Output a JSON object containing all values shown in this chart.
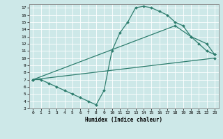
{
  "xlabel": "Humidex (Indice chaleur)",
  "bg_color": "#cde8e8",
  "line_color": "#2e7d6e",
  "xlim": [
    -0.5,
    23.5
  ],
  "ylim": [
    3,
    17.5
  ],
  "xticks": [
    0,
    1,
    2,
    3,
    4,
    5,
    6,
    7,
    8,
    9,
    10,
    11,
    12,
    13,
    14,
    15,
    16,
    17,
    18,
    19,
    20,
    21,
    22,
    23
  ],
  "yticks": [
    3,
    4,
    5,
    6,
    7,
    8,
    9,
    10,
    11,
    12,
    13,
    14,
    15,
    16,
    17
  ],
  "line1_x": [
    0,
    1,
    2,
    3,
    4,
    5,
    6,
    7,
    8,
    9,
    10,
    11,
    12,
    13,
    14,
    15,
    16,
    17,
    18,
    19,
    20,
    21,
    22,
    23
  ],
  "line1_y": [
    7,
    7,
    6.5,
    6,
    5.5,
    5,
    4.5,
    4,
    3.5,
    5.5,
    11,
    13.5,
    15,
    17,
    17.2,
    17,
    16.5,
    16,
    15,
    14.5,
    13,
    12,
    11,
    10.5
  ],
  "line2_x": [
    0,
    18,
    20,
    22,
    23
  ],
  "line2_y": [
    7,
    14.5,
    13,
    12,
    10.5
  ],
  "line3_x": [
    0,
    23
  ],
  "line3_y": [
    7,
    10
  ]
}
